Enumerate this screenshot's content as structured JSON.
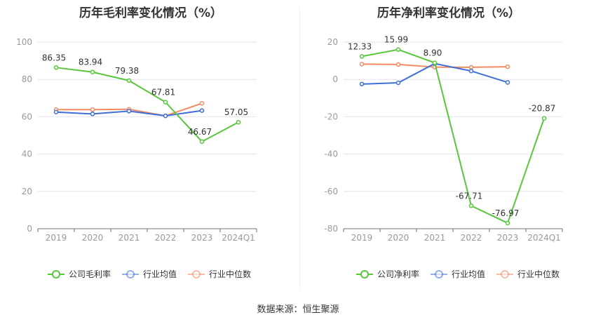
{
  "source_text": "数据来源：恒生聚源",
  "chart_data": [
    {
      "type": "line",
      "title": "历年毛利率变化情况（%）",
      "categories": [
        "2019",
        "2020",
        "2021",
        "2022",
        "2023",
        "2024Q1"
      ],
      "ylim": [
        0,
        100
      ],
      "yticks": [
        0,
        20,
        40,
        60,
        80,
        100
      ],
      "grid": true,
      "legend_position": "bottom",
      "series": [
        {
          "name": "公司毛利率",
          "color": "#5ac63b",
          "values": [
            86.35,
            83.94,
            79.38,
            67.81,
            46.67,
            57.05
          ],
          "labels": [
            "86.35",
            "83.94",
            "79.38",
            "67.81",
            "46.67",
            "57.05"
          ]
        },
        {
          "name": "行业均值",
          "color": "#3d6fd6",
          "values": [
            62.5,
            61.5,
            63.0,
            60.5,
            63.3,
            null
          ]
        },
        {
          "name": "行业中位数",
          "color": "#f28b64",
          "values": [
            63.8,
            63.8,
            64.0,
            60.5,
            67.2,
            null
          ]
        }
      ]
    },
    {
      "type": "line",
      "title": "历年净利率变化情况（%）",
      "categories": [
        "2019",
        "2020",
        "2021",
        "2022",
        "2023",
        "2024Q1"
      ],
      "ylim": [
        -80,
        20
      ],
      "yticks": [
        -80,
        -60,
        -40,
        -20,
        0,
        20
      ],
      "grid": true,
      "legend_position": "bottom",
      "series": [
        {
          "name": "公司净利率",
          "color": "#5ac63b",
          "values": [
            12.33,
            15.99,
            8.9,
            -67.71,
            -76.97,
            -20.87
          ],
          "labels": [
            "12.33",
            "15.99",
            "8.90",
            "-67.71",
            "-76.97",
            "-20.87"
          ]
        },
        {
          "name": "行业均值",
          "color": "#3d6fd6",
          "values": [
            -2.5,
            -1.8,
            8.5,
            4.5,
            -1.6,
            null
          ]
        },
        {
          "name": "行业中位数",
          "color": "#f28b64",
          "values": [
            8.2,
            8.0,
            6.6,
            6.5,
            6.8,
            null
          ]
        }
      ]
    }
  ]
}
